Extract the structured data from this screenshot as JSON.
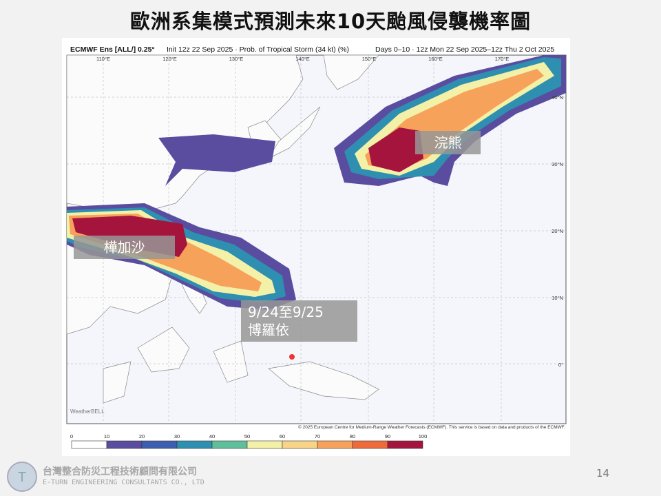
{
  "header": {
    "title": "歐洲系集模式預測未來10天颱風侵襲機率圖"
  },
  "map": {
    "product": "ECMWF Ens [ALL/] 0.25°",
    "init": "Init 12z 22 Sep 2025 · Prob. of Tropical Storm (34 kt) (%)",
    "period": "Days 0–10 · 12z Mon 22 Sep 2025–12z Thu 2 Oct 2025",
    "lon_labels": [
      "110°E",
      "120°E",
      "130°E",
      "140°E",
      "150°E",
      "160°E",
      "170°E"
    ],
    "lat_labels": [
      "40°N",
      "30°N",
      "20°N",
      "10°N",
      "0°"
    ],
    "copyright": "© 2025 European Centre for Medium-Range Weather Forecasts (ECMWF). This service is based on data and products of the ECMWF.",
    "watermark": "WeatherBELL",
    "annotations": [
      "樺加沙",
      "9/24至9/25",
      "博羅依",
      "浣熊"
    ],
    "colorbar": {
      "ticks": [
        0,
        10,
        20,
        30,
        40,
        50,
        60,
        70,
        80,
        90,
        100
      ],
      "colors": [
        "#ffffff",
        "#5a4da0",
        "#3d5fb0",
        "#2f8fb0",
        "#5fbf9a",
        "#f3f0a8",
        "#f8d488",
        "#f7a25a",
        "#ef6a3a",
        "#a5143c"
      ]
    }
  },
  "footer": {
    "company": "台灣整合防災工程技術顧問有限公司",
    "company_en": "E-TURN ENGINEERING CONSULTANTS CO., LTD",
    "page": "14"
  }
}
